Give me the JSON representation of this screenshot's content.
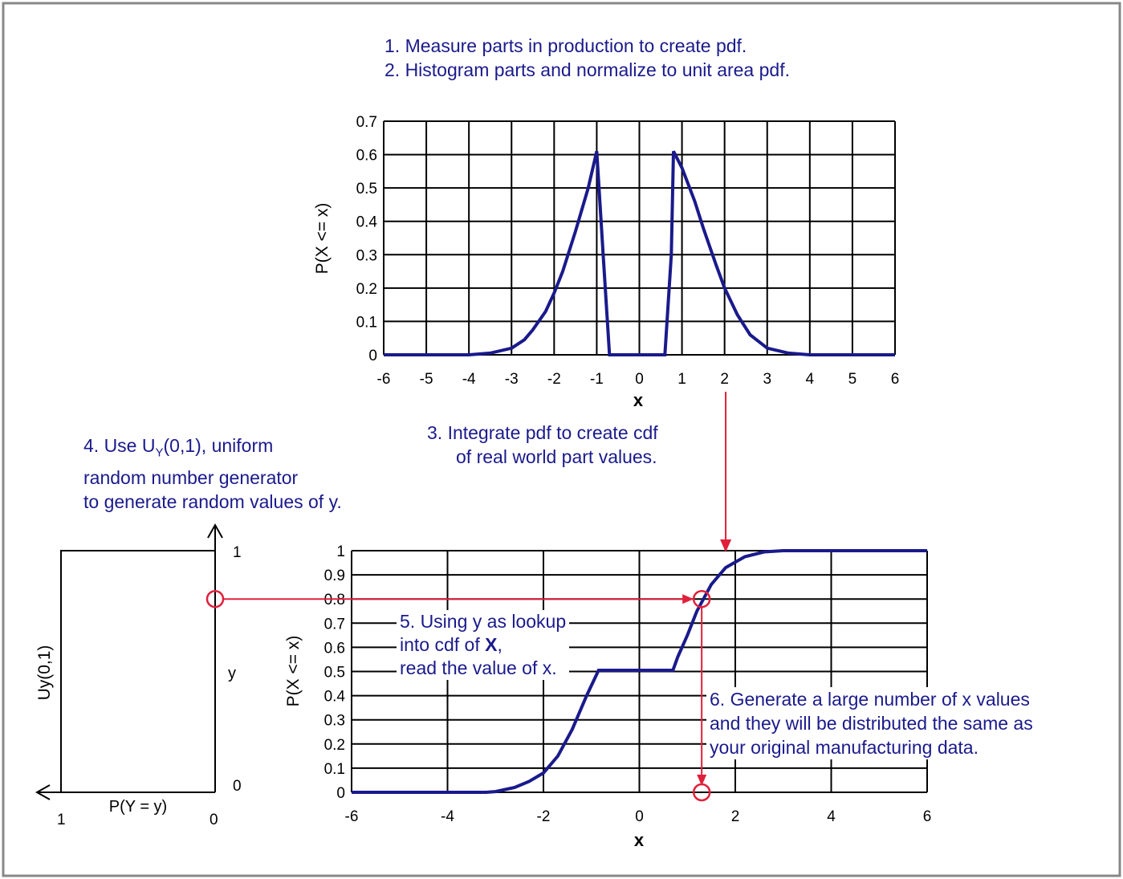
{
  "steps": {
    "step1": "1.  Measure parts in production to create pdf.",
    "step2": "2.  Histogram parts and normalize to unit area pdf.",
    "step3": [
      "3.  Integrate pdf to create cdf",
      "of real world part values."
    ],
    "step4": {
      "prefix": "4.  Use U",
      "sub": "Y",
      "suffix": "(0,1), uniform",
      "lines": [
        "random number generator",
        "to generate random values of y."
      ]
    },
    "step5": {
      "line1": "5.  Using y as lookup",
      "line2_prefix": "into cdf of ",
      "line2_bold": "X",
      "line2_suffix": ",",
      "line3": "read the value of x."
    },
    "step6": [
      "6.  Generate a large number of x values",
      "and they will be distributed the same as",
      "your original manufacturing data."
    ]
  },
  "colors": {
    "curve": "#1a1a8c",
    "text": "#1a1a8c",
    "annotation": "#e0203a",
    "grid": "#000000"
  },
  "chart_data": [
    {
      "type": "line",
      "xlabel": "x",
      "ylabel": "P(X <= x)",
      "xlim": [
        -6,
        6
      ],
      "ylim": [
        0,
        0.7
      ],
      "xticks": [
        "-6",
        "-5",
        "-4",
        "-3",
        "-2",
        "-1",
        "0",
        "1",
        "2",
        "3",
        "4",
        "5",
        "6"
      ],
      "yticks": [
        "0",
        "0.1",
        "0.2",
        "0.3",
        "0.4",
        "0.5",
        "0.6",
        "0.7"
      ],
      "grid": true,
      "x": [
        -6,
        -4,
        -3.5,
        -3,
        -2.7,
        -2.5,
        -2.2,
        -2,
        -1.8,
        -1.5,
        -1.2,
        -1,
        -0.85,
        -0.7,
        0.6,
        0.75,
        0.8,
        1,
        1.3,
        1.5,
        1.8,
        2,
        2.3,
        2.6,
        3,
        3.5,
        4,
        6
      ],
      "y": [
        0,
        0,
        0.005,
        0.02,
        0.045,
        0.075,
        0.13,
        0.185,
        0.25,
        0.37,
        0.5,
        0.61,
        0.3,
        0,
        0,
        0.3,
        0.61,
        0.56,
        0.46,
        0.38,
        0.27,
        0.2,
        0.12,
        0.06,
        0.02,
        0.005,
        0,
        0
      ]
    },
    {
      "type": "line",
      "xlabel": "x",
      "ylabel": "P(X <= x)",
      "xlim": [
        -6,
        6
      ],
      "ylim": [
        0,
        1
      ],
      "xticks": [
        "-6",
        "-4",
        "-2",
        "0",
        "2",
        "4",
        "6"
      ],
      "yticks": [
        "0",
        "0.1",
        "0.2",
        "0.3",
        "0.4",
        "0.5",
        "0.6",
        "0.7",
        "0.8",
        "0.9",
        "1"
      ],
      "grid": true,
      "x": [
        -6,
        -3.2,
        -3,
        -2.6,
        -2.3,
        -2,
        -1.7,
        -1.4,
        -1.1,
        -0.85,
        0.7,
        0.8,
        1,
        1.2,
        1.5,
        1.8,
        2.2,
        2.6,
        3,
        6
      ],
      "y": [
        0,
        0,
        0.003,
        0.02,
        0.045,
        0.08,
        0.15,
        0.26,
        0.4,
        0.505,
        0.505,
        0.56,
        0.65,
        0.75,
        0.86,
        0.93,
        0.975,
        0.995,
        1,
        1
      ]
    },
    {
      "type": "line",
      "xlabel": "P(Y = y)",
      "ylabel": "Uy(0,1)",
      "ymarker_label": "y",
      "xticks": [
        "1",
        "0"
      ],
      "yticks": [
        "0",
        "1"
      ],
      "xlim": [
        1,
        0
      ],
      "ylim": [
        0,
        1
      ],
      "x": [
        1,
        1,
        0
      ],
      "y": [
        0,
        1,
        1
      ]
    }
  ],
  "lookup": {
    "y": 0.8,
    "x": 1.3,
    "arrow_down_x": 1.8
  }
}
